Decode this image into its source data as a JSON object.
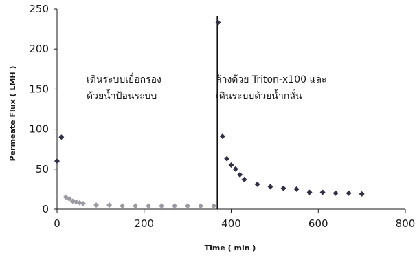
{
  "chart_data": {
    "type": "scatter",
    "xlabel": "Time ( min )",
    "ylabel": "Permeate Flux ( LMH )",
    "xlim": [
      0,
      800
    ],
    "ylim": [
      0,
      250
    ],
    "xticks": [
      "0",
      "200",
      "400",
      "600",
      "800"
    ],
    "yticks": [
      "0",
      "50",
      "100",
      "150",
      "200",
      "250"
    ],
    "grid": false,
    "legend": "none",
    "vertical_line_x": 368,
    "annotations": [
      {
        "lines": [
          "เดินระบบเยื่อกรอง",
          "ด้วยน้ำป้อนระบบ"
        ]
      },
      {
        "lines": [
          "ล้างด้วย Triton-x100 และ",
          "เดินระบบด้วยน้ำกลั่น"
        ]
      }
    ],
    "series": [
      {
        "color_dark": "#2e2e45",
        "color_light": "#9a9aa3",
        "points": [
          {
            "x": 0,
            "y": 60,
            "tone": "dark"
          },
          {
            "x": 10,
            "y": 90,
            "tone": "dark"
          },
          {
            "x": 20,
            "y": 15,
            "tone": "light"
          },
          {
            "x": 28,
            "y": 13,
            "tone": "light"
          },
          {
            "x": 36,
            "y": 10,
            "tone": "light"
          },
          {
            "x": 44,
            "y": 9,
            "tone": "light"
          },
          {
            "x": 52,
            "y": 8,
            "tone": "light"
          },
          {
            "x": 60,
            "y": 7,
            "tone": "light"
          },
          {
            "x": 90,
            "y": 5,
            "tone": "light"
          },
          {
            "x": 120,
            "y": 5,
            "tone": "light"
          },
          {
            "x": 150,
            "y": 4,
            "tone": "light"
          },
          {
            "x": 180,
            "y": 4,
            "tone": "light"
          },
          {
            "x": 210,
            "y": 4,
            "tone": "light"
          },
          {
            "x": 240,
            "y": 4,
            "tone": "light"
          },
          {
            "x": 270,
            "y": 4,
            "tone": "light"
          },
          {
            "x": 300,
            "y": 4,
            "tone": "light"
          },
          {
            "x": 330,
            "y": 4,
            "tone": "light"
          },
          {
            "x": 360,
            "y": 4,
            "tone": "light"
          },
          {
            "x": 370,
            "y": 233,
            "tone": "dark"
          },
          {
            "x": 380,
            "y": 91,
            "tone": "dark"
          },
          {
            "x": 390,
            "y": 63,
            "tone": "dark"
          },
          {
            "x": 400,
            "y": 55,
            "tone": "dark"
          },
          {
            "x": 410,
            "y": 50,
            "tone": "dark"
          },
          {
            "x": 420,
            "y": 43,
            "tone": "dark"
          },
          {
            "x": 430,
            "y": 37,
            "tone": "dark"
          },
          {
            "x": 460,
            "y": 31,
            "tone": "dark"
          },
          {
            "x": 490,
            "y": 28,
            "tone": "dark"
          },
          {
            "x": 520,
            "y": 26,
            "tone": "dark"
          },
          {
            "x": 550,
            "y": 25,
            "tone": "dark"
          },
          {
            "x": 580,
            "y": 21,
            "tone": "dark"
          },
          {
            "x": 610,
            "y": 21,
            "tone": "dark"
          },
          {
            "x": 640,
            "y": 20,
            "tone": "dark"
          },
          {
            "x": 670,
            "y": 20,
            "tone": "dark"
          },
          {
            "x": 700,
            "y": 19,
            "tone": "dark"
          }
        ]
      }
    ]
  }
}
